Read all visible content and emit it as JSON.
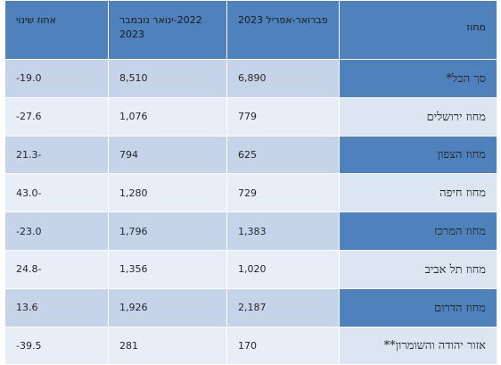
{
  "headers": {
    "district": "מחוז",
    "period_current": "פברואר-אפריל 2023",
    "period_previous": "2022-ינואר נובמבר 2023",
    "change_percent": "אחוז שינוי"
  },
  "rows": [
    {
      "district": "סך הכל*",
      "current": "6,890",
      "previous": "8,510",
      "change": "19.0-"
    },
    {
      "district": "מחוז ירושלים",
      "current": "779",
      "previous": "1,076",
      "change": "27.6-"
    },
    {
      "district": "מחוז הצפון",
      "current": "625",
      "previous": "794",
      "change": "-21.3"
    },
    {
      "district": "מחוז חיפה",
      "current": "729",
      "previous": "1,280",
      "change": "-43.0"
    },
    {
      "district": "מחוז המרכז",
      "current": "1,383",
      "previous": "1,796",
      "change": "23.0-"
    },
    {
      "district": "מחוז תל אביב",
      "current": "1,020",
      "previous": "1,356",
      "change": "-24.8"
    },
    {
      "district": "מחוז הדרום",
      "current": "2,187",
      "previous": "1,926",
      "change": "13.6"
    },
    {
      "district": "אזור יהודה והשומרון**",
      "current": "170",
      "previous": "281",
      "change": "39.5-"
    }
  ],
  "colors": {
    "header_bg": "#4f81bd",
    "band_dark": "#c6d4ea",
    "band_light": "#e7eef8"
  }
}
